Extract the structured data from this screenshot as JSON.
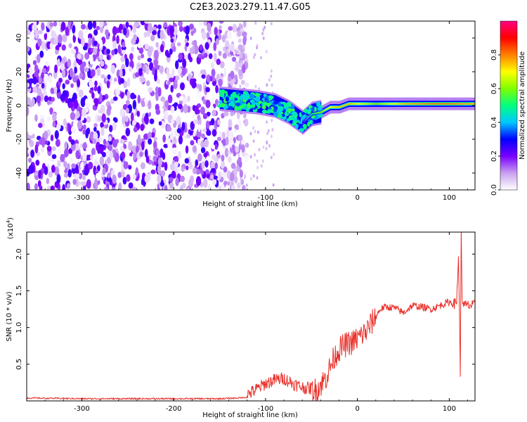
{
  "figure": {
    "title": "C2E3.2023.279.11.47.G05"
  },
  "chart_data": [
    {
      "type": "heatmap",
      "title": "C2E3.2023.279.11.47.G05",
      "xlabel": "Height of straight line (km)",
      "ylabel": "Frequency (Hz)",
      "xlim": [
        -360,
        128
      ],
      "ylim": [
        -50,
        50
      ],
      "x_ticks": [
        -300,
        -200,
        -100,
        0,
        100
      ],
      "x_tick_labels": [
        "-300",
        "-200",
        "-100",
        "0",
        "100"
      ],
      "y_ticks": [
        -40,
        -20,
        0,
        20,
        40
      ],
      "y_tick_labels": [
        "-40",
        "-20",
        "0",
        "20",
        "40"
      ],
      "colorbar": {
        "label": "Normalized spectral amplitude",
        "range": [
          0,
          1
        ],
        "ticks": [
          0.0,
          0.2,
          0.4,
          0.6,
          0.8
        ],
        "tick_labels": [
          "0.0",
          "0.2",
          "0.4",
          "0.6",
          "0.8"
        ],
        "colors": [
          "#ffffff",
          "#c8a0f0",
          "#7a00ff",
          "#0000ff",
          "#00c8ff",
          "#00ff80",
          "#80ff00",
          "#ffff00",
          "#ff8000",
          "#ff0000",
          "#ff0080"
        ]
      },
      "description_regions": {
        "noise_region_x": [
          -360,
          -130
        ],
        "noise_amplitude": 0.15,
        "signal_track": {
          "x": [
            -150,
            -130,
            -110,
            -90,
            -75,
            -60,
            -50,
            -40,
            -30,
            -20,
            -10,
            0,
            20,
            50,
            80,
            100,
            128
          ],
          "y": [
            4,
            3,
            2,
            0,
            -4,
            -10,
            -5,
            -4,
            -1,
            -1,
            1,
            1,
            1,
            1,
            1,
            1,
            1
          ],
          "amplitude": [
            0.35,
            0.4,
            0.38,
            0.35,
            0.3,
            0.3,
            0.5,
            0.6,
            0.7,
            0.75,
            0.75,
            0.7,
            0.6,
            0.75,
            0.8,
            0.8,
            0.75
          ]
        }
      },
      "grid": false
    },
    {
      "type": "line",
      "xlabel": "Height of straight line (km)",
      "ylabel": "SNR (10 * v/v)",
      "y_multiplier_label": "(x10",
      "y_multiplier_exp": "4",
      "xlim": [
        -360,
        128
      ],
      "ylim": [
        0,
        2.3
      ],
      "x_ticks": [
        -300,
        -200,
        -100,
        0,
        100
      ],
      "x_tick_labels": [
        "-300",
        "-200",
        "-100",
        "0",
        "100"
      ],
      "y_ticks": [
        0.5,
        1.0,
        1.5,
        2.0
      ],
      "y_tick_labels": [
        "0.5",
        "1.0",
        "1.5",
        "2.0"
      ],
      "series": [
        {
          "color": "#e8302a",
          "x": [
            -360,
            -300,
            -250,
            -200,
            -150,
            -130,
            -120,
            -110,
            -100,
            -90,
            -80,
            -70,
            -60,
            -50,
            -45,
            -40,
            -35,
            -30,
            -25,
            -20,
            -15,
            -10,
            -5,
            0,
            5,
            10,
            15,
            20,
            25,
            30,
            40,
            50,
            60,
            70,
            80,
            90,
            100,
            105,
            108,
            110,
            111,
            112,
            113,
            114,
            116,
            120,
            128
          ],
          "y": [
            0.04,
            0.03,
            0.03,
            0.03,
            0.03,
            0.04,
            0.05,
            0.12,
            0.2,
            0.25,
            0.27,
            0.2,
            0.15,
            0.13,
            0.15,
            0.22,
            0.3,
            0.45,
            0.6,
            0.7,
            0.75,
            0.78,
            0.8,
            0.85,
            0.9,
            0.95,
            1.05,
            1.15,
            1.25,
            1.28,
            1.27,
            1.2,
            1.3,
            1.28,
            1.25,
            1.3,
            1.35,
            1.32,
            1.35,
            2.0,
            1.2,
            0.4,
            2.3,
            1.4,
            1.3,
            1.3,
            1.3
          ]
        }
      ],
      "grid": false
    }
  ]
}
